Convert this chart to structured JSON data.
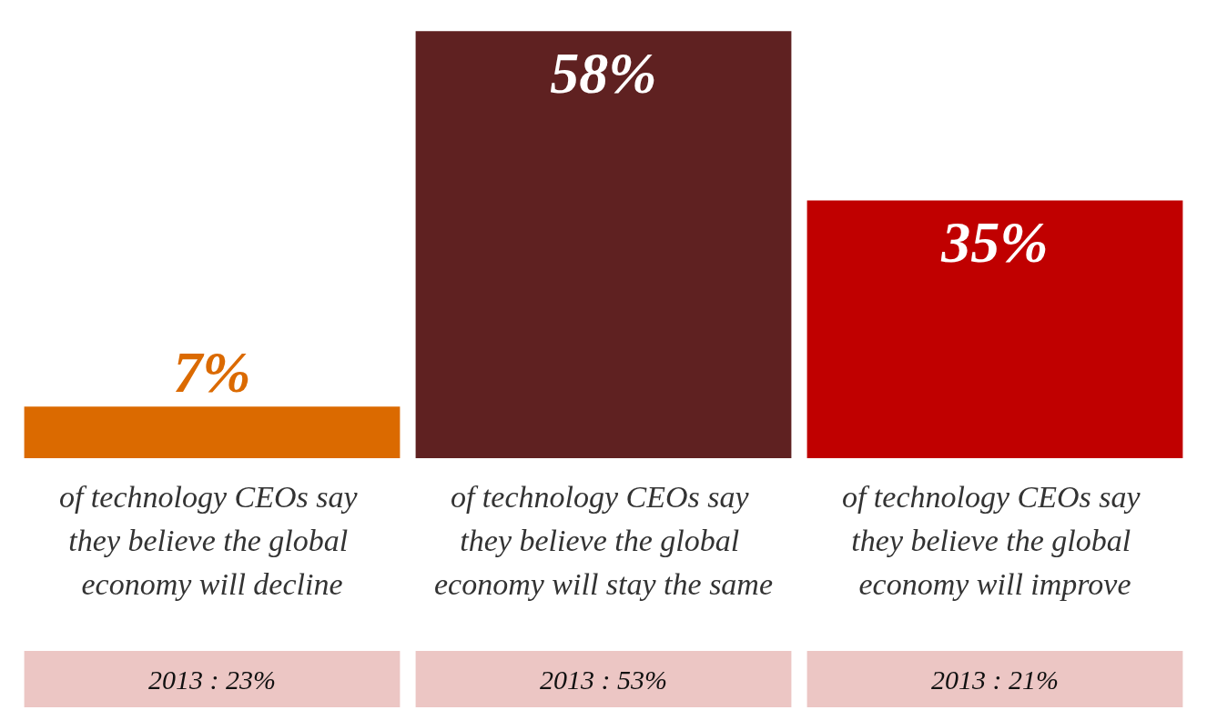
{
  "chart_data": {
    "type": "bar",
    "categories": [
      "of technology CEOs say they believe the global economy will decline",
      "of technology CEOs say they believe the global economy will stay the same",
      "of technology CEOs say they believe the global economy will improve"
    ],
    "values": [
      7,
      58,
      35
    ],
    "colors": [
      "#db6a00",
      "#5f2121",
      "#c00000"
    ],
    "value_labels": [
      "7%",
      "58%",
      "35%"
    ],
    "annotations": [
      "2013 : 23%",
      "2013 : 53%",
      "2013 : 21%"
    ],
    "tick_labels": "x"
  }
}
